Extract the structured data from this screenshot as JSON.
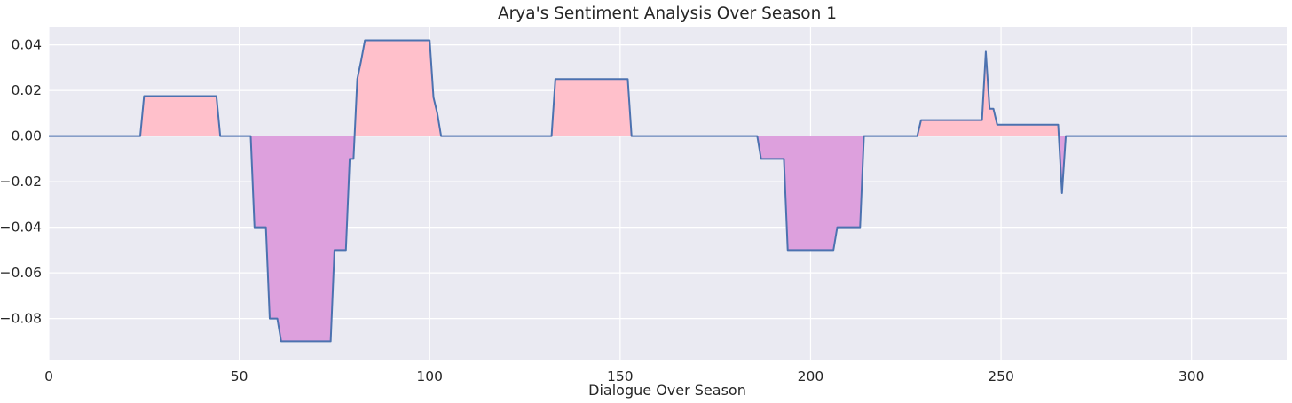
{
  "chart_data": {
    "type": "area",
    "title": "Arya's Sentiment Analysis Over Season 1",
    "xlabel": "Dialogue Over Season",
    "ylabel": "",
    "xlim": [
      0,
      325
    ],
    "ylim": [
      -0.098,
      0.048
    ],
    "xticks": [
      0,
      50,
      100,
      150,
      200,
      250,
      300
    ],
    "xtick_labels": [
      "0",
      "50",
      "100",
      "150",
      "200",
      "250",
      "300"
    ],
    "yticks": [
      0.04,
      0.02,
      0.0,
      -0.02,
      -0.04,
      -0.06,
      -0.08
    ],
    "ytick_labels": [
      "0.04",
      "0.02",
      "0.00",
      "−0.02",
      "−0.04",
      "−0.06",
      "−0.08"
    ],
    "grid": true,
    "colors": {
      "background": "#EAEAF2",
      "grid": "#FFFFFF",
      "line": "#4C72B0",
      "positive_fill": "#FFC0CB",
      "negative_fill": "#DDA0DD"
    },
    "series": [
      {
        "x": [
          0,
          24,
          25,
          44,
          45,
          53,
          54,
          57,
          58,
          60,
          61,
          74,
          75,
          78,
          79,
          80,
          81,
          82,
          83,
          100,
          101,
          102,
          103,
          132,
          133,
          152,
          153,
          186,
          187,
          193,
          194,
          206,
          207,
          213,
          214,
          228,
          229,
          245,
          246,
          247,
          248,
          249,
          265,
          266,
          267,
          325
        ],
        "y": [
          0,
          0,
          0.0175,
          0.0175,
          0,
          0,
          -0.04,
          -0.04,
          -0.08,
          -0.08,
          -0.09,
          -0.09,
          -0.05,
          -0.05,
          -0.01,
          -0.01,
          0.025,
          0.033,
          0.042,
          0.042,
          0.017,
          0.01,
          0,
          0,
          0.025,
          0.025,
          0,
          0,
          -0.01,
          -0.01,
          -0.05,
          -0.05,
          -0.04,
          -0.04,
          0,
          0,
          0.007,
          0.007,
          0.037,
          0.012,
          0.012,
          0.005,
          0.005,
          -0.025,
          0,
          0
        ]
      }
    ]
  }
}
